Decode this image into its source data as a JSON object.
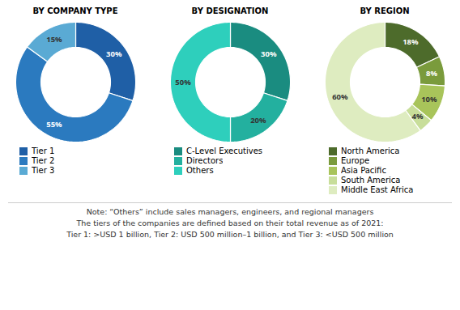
{
  "chart_data": [
    {
      "type": "donut",
      "title": "BY COMPANY TYPE",
      "categories": [
        "Tier 1",
        "Tier 2",
        "Tier 3"
      ],
      "values": [
        30,
        55,
        15
      ],
      "value_labels": [
        "30%",
        "55%",
        "15%"
      ],
      "colors": [
        "#1f5fa6",
        "#2b7abf",
        "#5aaad4"
      ],
      "data_labels": true,
      "legend": "bottom"
    },
    {
      "type": "donut",
      "title": "BY DESIGNATION",
      "categories": [
        "C-Level Executives",
        "Directors",
        "Others"
      ],
      "values": [
        30,
        20,
        50
      ],
      "value_labels": [
        "30%",
        "20%",
        "50%"
      ],
      "colors": [
        "#1a8c80",
        "#23b09f",
        "#2ecfbc"
      ],
      "data_labels": true,
      "legend": "bottom"
    },
    {
      "type": "donut",
      "title": "BY REGION",
      "categories": [
        "North America",
        "Europe",
        "Asia Pacific",
        "South America",
        "Middle East Africa"
      ],
      "values": [
        18,
        8,
        10,
        4,
        60
      ],
      "value_labels": [
        "18%",
        "8%",
        "10%",
        "4%",
        "60%"
      ],
      "colors": [
        "#4d6b2b",
        "#7a9b3c",
        "#a8c45a",
        "#c8de9a",
        "#deecc0"
      ],
      "data_labels": true,
      "legend": "bottom"
    }
  ],
  "annotations": [
    "Note: “Others” include sales managers, engineers, and regional managers",
    "The tiers of the companies are defined based on their total revenue as of 2021:",
    "Tier 1: >USD 1 billion, Tier 2: USD 500 million–1 billion, and Tier 3: <USD 500 million"
  ]
}
